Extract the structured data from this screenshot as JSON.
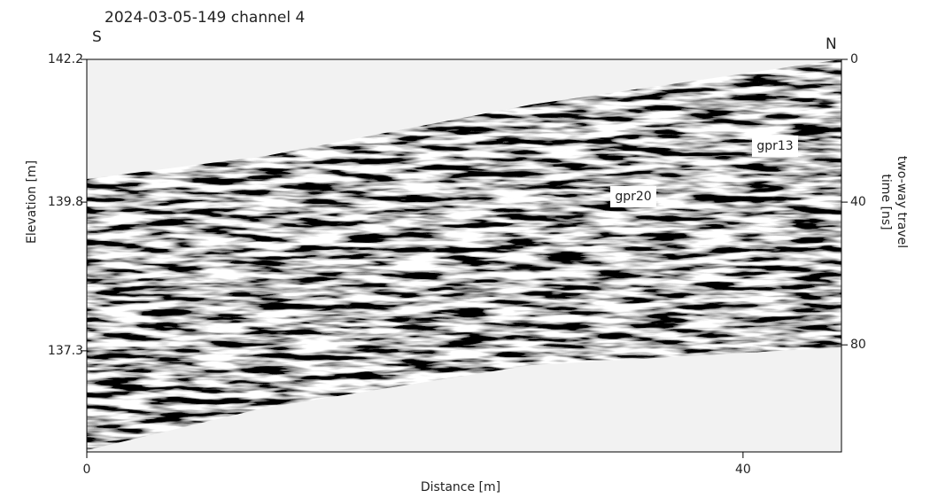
{
  "chart_data": {
    "type": "radargram",
    "title": "2024-03-05-149 channel 4",
    "start_label": "S",
    "end_label": "N",
    "xlabel": "Distance [m]",
    "ylabel": "Elevation [m]",
    "y2label": [
      "two-way travel",
      "time [ns]"
    ],
    "xlim": [
      0,
      46
    ],
    "xticks": [
      0,
      40
    ],
    "ylim": [
      135.6,
      142.2
    ],
    "yticks": [
      142.2,
      139.8,
      137.3
    ],
    "y2lim": [
      110,
      0
    ],
    "y2ticks": [
      0,
      40,
      80
    ],
    "annotations": [
      "gpr20",
      "gpr13"
    ]
  }
}
